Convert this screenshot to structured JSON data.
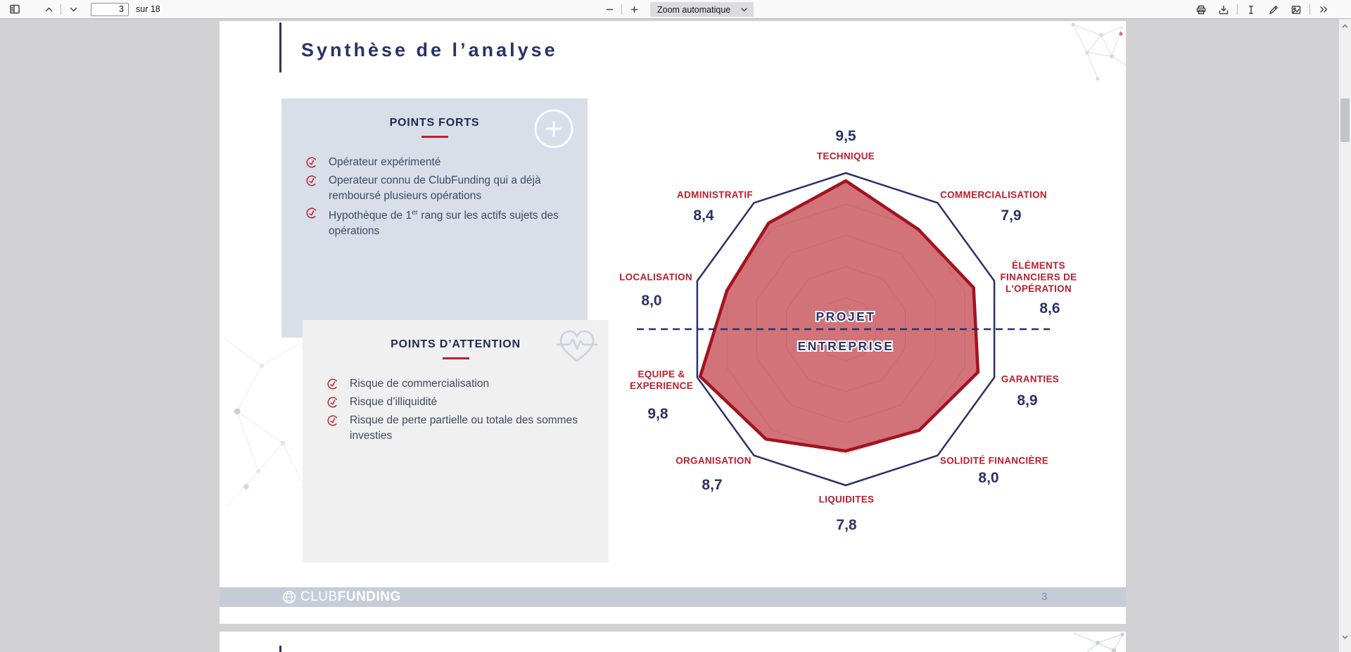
{
  "toolbar": {
    "page_value": "3",
    "pages_label": "sur 18",
    "zoom_label": "Zoom automatique"
  },
  "doc": {
    "title": "Synthèse de l’analyse"
  },
  "panels": {
    "strengths": {
      "title": "POINTS FORTS",
      "items": [
        "Opérateur expérimenté",
        "Operateur connu de ClubFunding qui a déjà remboursé plusieurs opérations",
        "Hypothèque de 1er rang sur les actifs sujets des opérations"
      ]
    },
    "attention": {
      "title": "POINTS D’ATTENTION",
      "items": [
        "Risque de commercialisation",
        "Risque d’illiquidité",
        "Risque de perte partielle ou totale des sommes investies"
      ]
    }
  },
  "footer": {
    "brand_club": "CLUB",
    "brand_funding": "FUNDING",
    "page_number": "3"
  },
  "chart_data": {
    "type": "radar",
    "max": 10,
    "axes": [
      {
        "label_lines": [
          "TECHNIQUE"
        ],
        "value": 9.5,
        "value_label": "9,5"
      },
      {
        "label_lines": [
          "COMMERCIALISATION"
        ],
        "value": 7.9,
        "value_label": "7,9"
      },
      {
        "label_lines": [
          "ÉLÉMENTS",
          "FINANCIERS DE",
          "L'OPÉRATION"
        ],
        "value": 8.6,
        "value_label": "8,6"
      },
      {
        "label_lines": [
          "GARANTIES"
        ],
        "value": 8.9,
        "value_label": "8,9"
      },
      {
        "label_lines": [
          "SOLIDITÉ FINANCIÈRE"
        ],
        "value": 8.0,
        "value_label": "8,0"
      },
      {
        "label_lines": [
          "LIQUIDITES"
        ],
        "value": 7.8,
        "value_label": "7,8"
      },
      {
        "label_lines": [
          "ORGANISATION"
        ],
        "value": 8.7,
        "value_label": "8,7"
      },
      {
        "label_lines": [
          "EQUIPE &",
          "EXPERIENCE"
        ],
        "value": 9.8,
        "value_label": "9,8"
      },
      {
        "label_lines": [
          "LOCALISATION"
        ],
        "value": 8.0,
        "value_label": "8,0"
      },
      {
        "label_lines": [
          "ADMINISTRATIF"
        ],
        "value": 8.4,
        "value_label": "8,4"
      }
    ],
    "center_labels": [
      "PROJET",
      "ENTREPRISE"
    ],
    "grid_levels": [
      0.2,
      0.4,
      0.6,
      0.8
    ],
    "colors": {
      "axis_label": "#bc1e2e",
      "value_label": "#2b3168",
      "outline": "#2b3168",
      "grid": "#b3aaa8",
      "fill": "rgba(199,80,88,0.8)",
      "fill_border": "#a31220",
      "dashed_line": "#2b3168"
    },
    "legend_position": "none",
    "title": ""
  }
}
